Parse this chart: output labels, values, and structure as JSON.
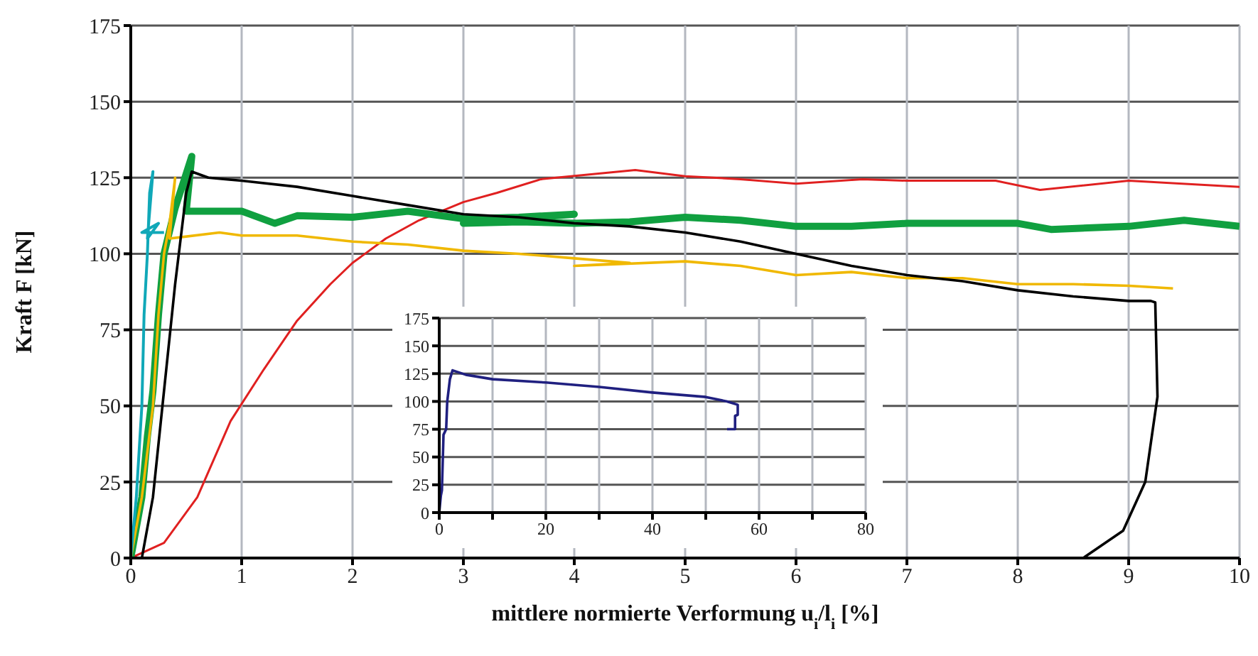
{
  "chart_data": [
    {
      "type": "line",
      "xlabel": "mittlere normierte Verformung u$_{i}$/l$_{i}$ [%]",
      "ylabel": "Kraft F [kN]",
      "xlim": [
        0,
        10
      ],
      "xticks": [
        0,
        1,
        2,
        3,
        4,
        5,
        6,
        7,
        8,
        9,
        10
      ],
      "ylim": [
        0,
        175
      ],
      "yticks": [
        0,
        25,
        50,
        75,
        100,
        125,
        150,
        175
      ],
      "grid": true,
      "marker": "none",
      "series": [
        {
          "color": "#e02020",
          "x": [
            0,
            0.3,
            0.6,
            0.9,
            1.2,
            1.5,
            1.8,
            2,
            2.3,
            2.6,
            3,
            3.3,
            3.7,
            4.55,
            5,
            5.5,
            6,
            6.6,
            7,
            7.8,
            8.2,
            9,
            10
          ],
          "values": [
            0,
            5,
            20,
            45,
            62,
            78,
            90,
            97,
            105,
            111,
            117,
            120,
            124.5,
            127.5,
            125.5,
            124.5,
            123,
            124.5,
            124,
            124,
            121,
            124,
            122
          ]
        },
        {
          "color": "#10a040",
          "x": [
            0,
            0.1,
            0.15,
            0.2,
            0.25,
            0.3,
            0.4,
            0.55,
            0.5,
            1,
            1.3,
            1.5,
            2,
            2.5,
            3,
            3.5,
            4,
            3,
            3.5,
            4,
            4.5,
            5,
            5.5,
            6,
            6.5,
            7,
            7.5,
            8,
            8.3,
            9,
            9.5,
            10
          ],
          "values": [
            0,
            20,
            40,
            55,
            80,
            100,
            115,
            132,
            114,
            114,
            110,
            112.5,
            112,
            114,
            111.5,
            112,
            113,
            110,
            110.5,
            110,
            110.5,
            112,
            111,
            109,
            109,
            110,
            110,
            110,
            108,
            109,
            111,
            109
          ]
        },
        {
          "color": "#f0b800",
          "x": [
            0,
            0.1,
            0.2,
            0.25,
            0.3,
            0.35,
            0.4,
            0.35,
            0.8,
            1,
            1.5,
            2,
            2.5,
            3,
            3.5,
            4,
            4.5,
            4,
            5,
            5.5,
            6,
            6.5,
            7,
            7.5,
            8,
            8.5,
            9,
            9.4
          ],
          "values": [
            0,
            20,
            50,
            80,
            100,
            110,
            125,
            105,
            107,
            106,
            106,
            104,
            103,
            101,
            100,
            98.5,
            97,
            96,
            97.5,
            96,
            93,
            94,
            92,
            92,
            90,
            90,
            89.5,
            88.6
          ]
        },
        {
          "color": "#10a8b8",
          "x": [
            0,
            0.05,
            0.1,
            0.12,
            0.15,
            0.17,
            0.2,
            0.15,
            0.25,
            0.1,
            0.3
          ],
          "values": [
            0,
            20,
            50,
            80,
            100,
            120,
            127,
            105,
            110,
            107,
            107
          ]
        },
        {
          "color": "#000000",
          "x": [
            0.1,
            0.2,
            0.3,
            0.4,
            0.5,
            0.55,
            0.7,
            1,
            1.5,
            2,
            2.5,
            3,
            3.5,
            4,
            4.5,
            5,
            5.5,
            6,
            6.5,
            7,
            7.5,
            8,
            8.5,
            9,
            9.2,
            9.24,
            9.26,
            9.15,
            8.95,
            8.59
          ],
          "values": [
            0,
            20,
            55,
            90,
            120,
            127,
            125,
            124,
            122,
            119,
            116,
            113,
            112,
            110,
            109,
            107,
            104,
            100,
            96,
            93,
            91,
            88,
            86,
            84.5,
            84.5,
            84,
            53,
            25,
            9,
            0
          ]
        }
      ]
    },
    {
      "type": "line",
      "xlim": [
        0,
        80
      ],
      "xticks": [
        0,
        {
          "value": 10,
          "label": null
        },
        20,
        {
          "value": 30,
          "label": null
        },
        40,
        {
          "value": 50,
          "label": null
        },
        60,
        {
          "value": 70,
          "label": null
        },
        80
      ],
      "ylim": [
        0,
        175
      ],
      "yticks": [
        0,
        25,
        50,
        75,
        100,
        125,
        150,
        175
      ],
      "grid": true,
      "marker": "none",
      "series": [
        {
          "color": "#202080",
          "x": [
            0,
            0.3,
            0.5,
            0.8,
            1.3,
            1.5,
            2,
            2.5,
            5,
            10,
            20,
            30,
            40,
            50,
            54,
            56,
            56,
            55.5,
            55.5,
            54
          ],
          "values": [
            0,
            15,
            20,
            70,
            75,
            100,
            120,
            128,
            124,
            120,
            117,
            113,
            108,
            104,
            100,
            97,
            88,
            87,
            75,
            75
          ]
        }
      ]
    }
  ]
}
